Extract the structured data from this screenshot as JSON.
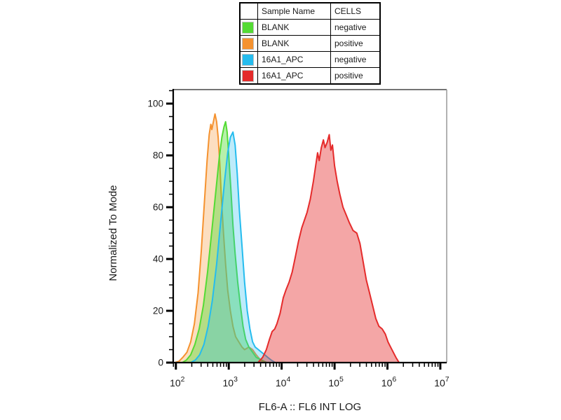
{
  "legend": {
    "columns": {
      "swatch": "",
      "sample": "Sample Name",
      "cells": "CELLS"
    },
    "rows": [
      {
        "color": "#54DB34",
        "sample": "BLANK",
        "cells": "negative"
      },
      {
        "color": "#F5922F",
        "sample": "BLANK",
        "cells": "positive"
      },
      {
        "color": "#25BCEE",
        "sample": "16A1_APC",
        "cells": "negative"
      },
      {
        "color": "#E52B2B",
        "sample": "16A1_APC",
        "cells": "positive"
      }
    ]
  },
  "chart_data": {
    "type": "area",
    "title": "",
    "xlabel": "FL6-A :: FL6 INT LOG",
    "ylabel": "Normalized To Mode",
    "x_scale": "log10",
    "xlim_log": [
      1.95,
      7.12
    ],
    "ylim": [
      0,
      105.4
    ],
    "x_major_exponents": [
      2,
      3,
      4,
      5,
      6,
      7
    ],
    "x_minor_mantissas": [
      2,
      3,
      4,
      5,
      6,
      7,
      8,
      9
    ],
    "y_major_ticks": [
      0,
      20,
      40,
      60,
      80,
      100
    ],
    "y_minor_step": 5,
    "grid": false,
    "legend_position": "top-center",
    "axis_colors": {
      "spine": "#000000",
      "top_border": "#222222",
      "right_border": "#999999",
      "tick_label": "#1a1a1a"
    },
    "series": [
      {
        "id": "blank-positive",
        "name": "BLANK / positive",
        "color": "#F5922F",
        "fill_opacity": 0.3,
        "points": [
          [
            1.98,
            0
          ],
          [
            2.06,
            0.5
          ],
          [
            2.13,
            2
          ],
          [
            2.21,
            4
          ],
          [
            2.28,
            8
          ],
          [
            2.35,
            15
          ],
          [
            2.42,
            27
          ],
          [
            2.48,
            43
          ],
          [
            2.54,
            62
          ],
          [
            2.59,
            78
          ],
          [
            2.63,
            88
          ],
          [
            2.66,
            92
          ],
          [
            2.68,
            90
          ],
          [
            2.71,
            93
          ],
          [
            2.74,
            96
          ],
          [
            2.77,
            93
          ],
          [
            2.8,
            87
          ],
          [
            2.83,
            77
          ],
          [
            2.86,
            64
          ],
          [
            2.9,
            50
          ],
          [
            2.94,
            38
          ],
          [
            2.98,
            28
          ],
          [
            3.03,
            20
          ],
          [
            3.08,
            14
          ],
          [
            3.13,
            10
          ],
          [
            3.19,
            8
          ],
          [
            3.25,
            6
          ],
          [
            3.3,
            5
          ],
          [
            3.38,
            6
          ],
          [
            3.45,
            5
          ],
          [
            3.52,
            3
          ],
          [
            3.6,
            1
          ],
          [
            3.68,
            0
          ]
        ]
      },
      {
        "id": "blank-negative",
        "name": "BLANK / negative",
        "color": "#54DB34",
        "fill_opacity": 0.42,
        "points": [
          [
            1.95,
            0
          ],
          [
            2.12,
            0
          ],
          [
            2.2,
            1
          ],
          [
            2.28,
            3
          ],
          [
            2.36,
            7
          ],
          [
            2.44,
            13
          ],
          [
            2.52,
            22
          ],
          [
            2.6,
            35
          ],
          [
            2.68,
            51
          ],
          [
            2.76,
            67
          ],
          [
            2.82,
            79
          ],
          [
            2.87,
            87
          ],
          [
            2.91,
            91
          ],
          [
            2.94,
            93
          ],
          [
            2.97,
            89
          ],
          [
            3.0,
            80
          ],
          [
            3.04,
            67
          ],
          [
            3.08,
            53
          ],
          [
            3.12,
            42
          ],
          [
            3.17,
            31
          ],
          [
            3.22,
            22
          ],
          [
            3.27,
            14
          ],
          [
            3.32,
            9
          ],
          [
            3.38,
            6
          ],
          [
            3.45,
            4
          ],
          [
            3.52,
            2
          ],
          [
            3.62,
            1
          ],
          [
            3.72,
            0
          ],
          [
            7.12,
            0
          ]
        ]
      },
      {
        "id": "16a1apc-negative",
        "name": "16A1_APC / negative",
        "color": "#25BCEE",
        "fill_opacity": 0.3,
        "points": [
          [
            2.28,
            0
          ],
          [
            2.37,
            1
          ],
          [
            2.45,
            3
          ],
          [
            2.53,
            7
          ],
          [
            2.61,
            14
          ],
          [
            2.69,
            24
          ],
          [
            2.77,
            38
          ],
          [
            2.85,
            55
          ],
          [
            2.92,
            70
          ],
          [
            2.98,
            81
          ],
          [
            3.03,
            87
          ],
          [
            3.08,
            89
          ],
          [
            3.12,
            84
          ],
          [
            3.16,
            73
          ],
          [
            3.2,
            59
          ],
          [
            3.25,
            45
          ],
          [
            3.3,
            31
          ],
          [
            3.35,
            20
          ],
          [
            3.4,
            13
          ],
          [
            3.45,
            8
          ],
          [
            3.5,
            6
          ],
          [
            3.56,
            5
          ],
          [
            3.62,
            4
          ],
          [
            3.68,
            3
          ],
          [
            3.74,
            2
          ],
          [
            3.8,
            1
          ],
          [
            3.88,
            0
          ]
        ]
      },
      {
        "id": "16a1apc-positive",
        "name": "16A1_APC / positive",
        "color": "#E52B2B",
        "fill_opacity": 0.42,
        "points": [
          [
            3.55,
            0
          ],
          [
            3.64,
            2
          ],
          [
            3.71,
            5
          ],
          [
            3.77,
            9
          ],
          [
            3.82,
            12
          ],
          [
            3.87,
            13
          ],
          [
            3.91,
            15
          ],
          [
            3.97,
            19
          ],
          [
            4.03,
            25
          ],
          [
            4.08,
            28
          ],
          [
            4.14,
            31
          ],
          [
            4.2,
            35
          ],
          [
            4.26,
            41
          ],
          [
            4.32,
            47
          ],
          [
            4.38,
            52
          ],
          [
            4.43,
            55
          ],
          [
            4.48,
            58
          ],
          [
            4.54,
            63
          ],
          [
            4.6,
            70
          ],
          [
            4.65,
            77
          ],
          [
            4.68,
            81
          ],
          [
            4.71,
            78
          ],
          [
            4.75,
            83
          ],
          [
            4.79,
            86
          ],
          [
            4.82,
            83
          ],
          [
            4.86,
            85
          ],
          [
            4.9,
            88
          ],
          [
            4.93,
            82
          ],
          [
            4.96,
            84
          ],
          [
            5.0,
            76
          ],
          [
            5.05,
            70
          ],
          [
            5.1,
            65
          ],
          [
            5.16,
            60
          ],
          [
            5.22,
            57
          ],
          [
            5.28,
            54
          ],
          [
            5.35,
            51
          ],
          [
            5.42,
            50
          ],
          [
            5.48,
            46
          ],
          [
            5.54,
            39
          ],
          [
            5.6,
            32
          ],
          [
            5.66,
            27
          ],
          [
            5.72,
            22
          ],
          [
            5.78,
            17
          ],
          [
            5.84,
            14
          ],
          [
            5.9,
            13
          ],
          [
            5.96,
            11
          ],
          [
            6.01,
            8
          ],
          [
            6.06,
            6
          ],
          [
            6.11,
            4
          ],
          [
            6.16,
            2
          ],
          [
            6.22,
            0
          ]
        ]
      }
    ]
  }
}
